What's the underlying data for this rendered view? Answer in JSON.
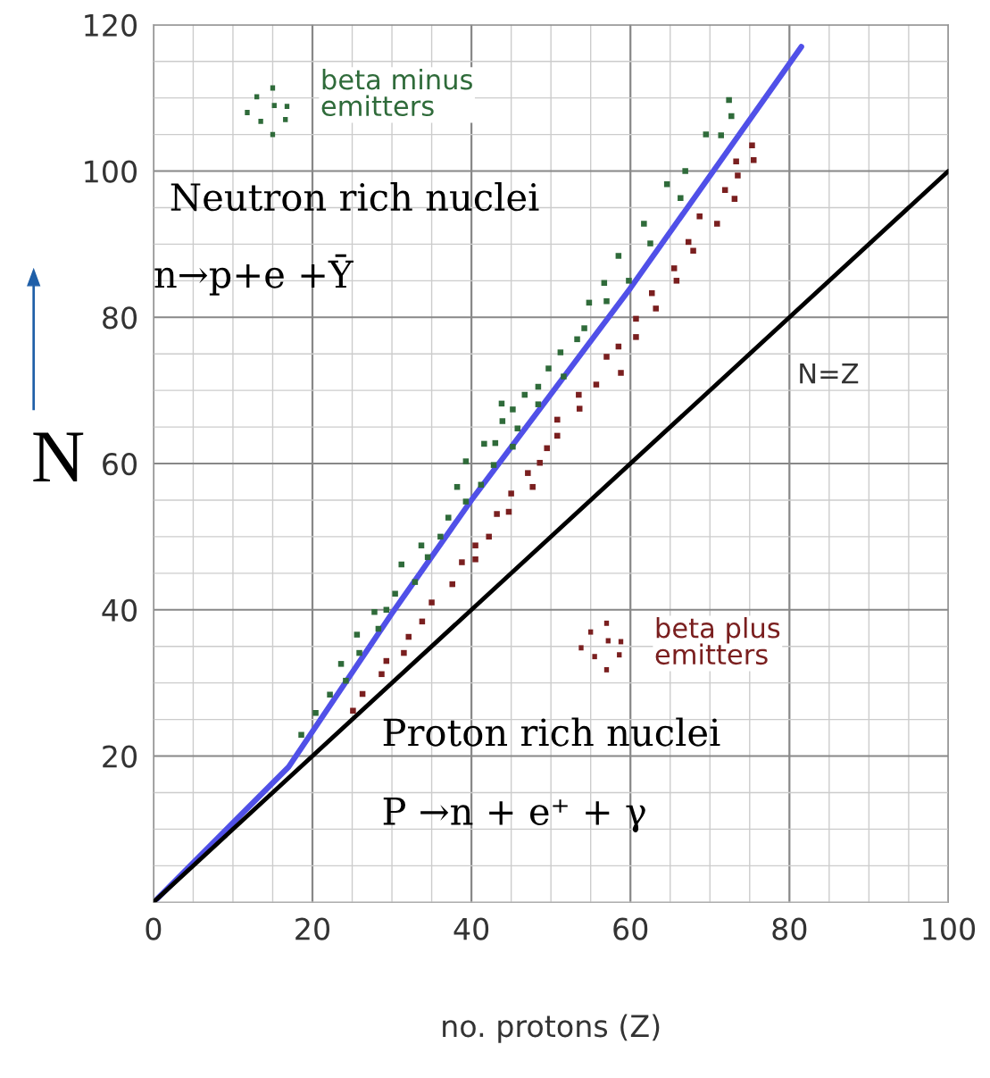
{
  "chart_data": {
    "type": "scatter",
    "xlabel": "no. protons (Z)",
    "ylabel": "N",
    "xlim": [
      0,
      100
    ],
    "ylim": [
      0,
      120
    ],
    "xticks": [
      0,
      20,
      40,
      60,
      80,
      100
    ],
    "yticks": [
      20,
      40,
      60,
      80,
      100,
      120
    ],
    "grid": true,
    "marker": "square",
    "series": [
      {
        "color": "#2f6b3a",
        "x": [
          49.7,
          48.4,
          46.7,
          43.8,
          45.2,
          48.4,
          43.9,
          45.8,
          41.6,
          43.0,
          45.2,
          39.3,
          42.8,
          38.2,
          41.2,
          39.3,
          37.1,
          36.1,
          33.7,
          34.5,
          31.2,
          32.9,
          30.4,
          27.8,
          29.3,
          28.3,
          25.6,
          25.9,
          23.6,
          24.2,
          22.2,
          20.4,
          18.6,
          72.4,
          72.7,
          69.5,
          71.4,
          66.9,
          64.6,
          66.3,
          61.7,
          62.5,
          58.5,
          56.7,
          59.8,
          54.8,
          57.0,
          54.2,
          53.3,
          51.2,
          51.6
        ],
        "values": [
          73.0,
          70.5,
          69.4,
          68.2,
          67.4,
          68.1,
          65.8,
          64.8,
          62.7,
          62.8,
          62.3,
          60.3,
          59.8,
          56.8,
          57.1,
          54.8,
          52.6,
          50.0,
          48.8,
          47.2,
          46.2,
          43.8,
          42.2,
          39.7,
          40.0,
          37.4,
          36.6,
          34.1,
          32.6,
          30.3,
          28.4,
          25.9,
          22.9,
          109.7,
          107.5,
          105.0,
          104.9,
          100.0,
          98.2,
          96.3,
          92.8,
          90.1,
          88.4,
          84.7,
          85.0,
          82.0,
          82.2,
          78.5,
          77.0,
          75.2,
          71.9
        ]
      },
      {
        "color": "#7a1f1f",
        "x": [
          50.8,
          50.8,
          49.5,
          48.6,
          47.1,
          47.7,
          45.0,
          44.7,
          43.2,
          42.2,
          40.5,
          40.5,
          38.8,
          37.6,
          35.0,
          33.8,
          32.1,
          31.5,
          29.3,
          28.7,
          26.3,
          25.1,
          75.3,
          75.5,
          73.3,
          73.5,
          71.9,
          73.1,
          68.7,
          70.9,
          67.3,
          67.9,
          65.5,
          65.8,
          62.7,
          63.2,
          60.7,
          60.7,
          58.5,
          57.0,
          58.8,
          55.7,
          53.5,
          53.6
        ],
        "values": [
          66.0,
          63.8,
          62.1,
          60.1,
          58.7,
          56.8,
          55.9,
          53.4,
          53.1,
          50.0,
          48.8,
          46.9,
          46.5,
          43.5,
          41.0,
          38.4,
          36.3,
          34.1,
          33.0,
          31.2,
          28.5,
          26.2,
          103.5,
          101.5,
          101.3,
          99.4,
          97.4,
          96.2,
          93.8,
          92.8,
          90.3,
          89.1,
          86.7,
          85.0,
          83.3,
          81.2,
          79.8,
          77.3,
          76.0,
          74.6,
          72.4,
          70.8,
          69.4,
          67.5
        ]
      },
      {
        "type": "line",
        "marker": "none",
        "color": "#5050e8",
        "x": [
          0.5,
          17,
          30,
          40,
          60,
          81.5
        ],
        "values": [
          0.5,
          18.5,
          39.5,
          55,
          84,
          117
        ]
      },
      {
        "type": "line",
        "marker": "none",
        "color": "#000000",
        "x": [
          0,
          100
        ],
        "values": [
          0,
          100
        ]
      }
    ],
    "annotations": [
      "beta minus\nemitters",
      "Neutron rich nuclei",
      "n→p+e +Ȳ",
      "beta plus\nemitters",
      "Proton rich nuclei",
      "P →n + e⁺ + γ",
      "N=Z"
    ]
  }
}
